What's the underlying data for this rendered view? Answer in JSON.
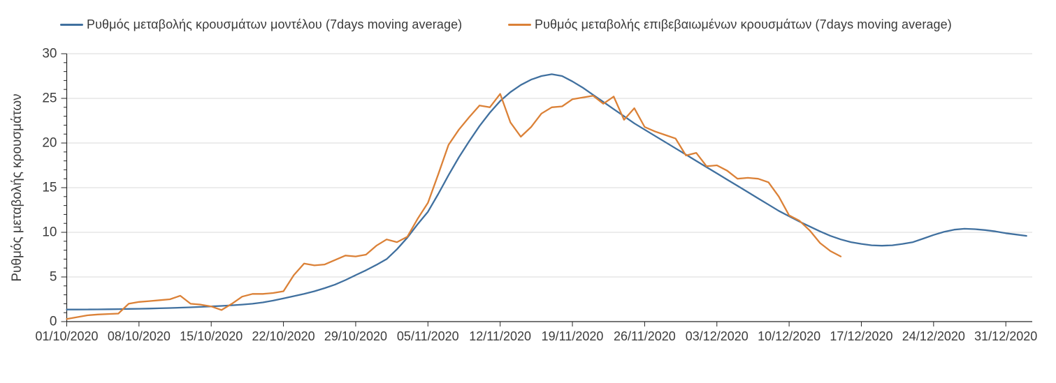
{
  "legend": {
    "items": [
      {
        "label": "Ρυθμός μεταβολής κρουσμάτων μοντέλου (7days moving average)",
        "color": "#40709F"
      },
      {
        "label": "Ρυθμός μεταβολής επιβεβαιωμένων κρουσμάτων (7days moving average)",
        "color": "#DB8137"
      }
    ]
  },
  "axes": {
    "y_title": "Ρυθμός μεταβολής κρουσμάτων"
  },
  "colors": {
    "model_line": "#40709F",
    "confirmed_line": "#DB8137",
    "gridline": "#D9D9D9",
    "axis": "#262626",
    "text": "#3d3d3d"
  },
  "chart_data": {
    "type": "line",
    "title": "",
    "xlabel": "",
    "ylabel": "Ρυθμός μεταβολής κρουσμάτων",
    "ylim": [
      0,
      30
    ],
    "y_major_ticks": [
      0,
      5,
      10,
      15,
      20,
      25,
      30
    ],
    "y_minor_tick_step": 1,
    "grid": "horizontal-major-only",
    "legend_position": "top",
    "x_tick_labels": [
      "01/10/2020",
      "08/10/2020",
      "15/10/2020",
      "22/10/2020",
      "29/10/2020",
      "05/11/2020",
      "12/11/2020",
      "19/11/2020",
      "26/11/2020",
      "03/12/2020",
      "10/12/2020",
      "17/12/2020",
      "24/12/2020",
      "31/12/2020"
    ],
    "x_frequency": "daily",
    "series": [
      {
        "name": "Ρυθμός μεταβολής κρουσμάτων μοντέλου (7days moving average)",
        "color": "#40709F",
        "start_date": "01/10/2020",
        "end_date": "02/01/2021",
        "values": [
          1.35,
          1.35,
          1.36,
          1.37,
          1.38,
          1.4,
          1.42,
          1.44,
          1.46,
          1.49,
          1.52,
          1.56,
          1.6,
          1.65,
          1.7,
          1.76,
          1.83,
          1.91,
          2.0,
          2.15,
          2.35,
          2.6,
          2.85,
          3.1,
          3.4,
          3.75,
          4.15,
          4.65,
          5.2,
          5.75,
          6.35,
          7.0,
          8.1,
          9.4,
          10.9,
          12.3,
          14.3,
          16.4,
          18.4,
          20.2,
          21.9,
          23.4,
          24.7,
          25.7,
          26.5,
          27.1,
          27.5,
          27.7,
          27.5,
          26.9,
          26.2,
          25.4,
          24.6,
          23.8,
          23.0,
          22.2,
          21.5,
          20.8,
          20.1,
          19.4,
          18.7,
          18.0,
          17.3,
          16.6,
          15.9,
          15.2,
          14.5,
          13.8,
          13.1,
          12.4,
          11.8,
          11.2,
          10.65,
          10.1,
          9.6,
          9.2,
          8.9,
          8.7,
          8.55,
          8.5,
          8.55,
          8.7,
          8.9,
          9.3,
          9.7,
          10.05,
          10.3,
          10.4,
          10.35,
          10.25,
          10.1,
          9.9,
          9.75,
          9.6
        ]
      },
      {
        "name": "Ρυθμός μεταβολής επιβεβαιωμένων κρουσμάτων (7days moving average)",
        "color": "#DB8137",
        "start_date": "01/10/2020",
        "end_date": "15/12/2020",
        "values": [
          0.3,
          0.5,
          0.7,
          0.8,
          0.85,
          0.9,
          2.0,
          2.2,
          2.3,
          2.4,
          2.5,
          2.9,
          2.0,
          1.9,
          1.7,
          1.3,
          2.0,
          2.8,
          3.1,
          3.1,
          3.2,
          3.4,
          5.2,
          6.5,
          6.3,
          6.4,
          6.9,
          7.4,
          7.3,
          7.5,
          8.5,
          9.2,
          8.9,
          9.5,
          11.5,
          13.3,
          16.5,
          19.8,
          21.5,
          22.9,
          24.2,
          24.0,
          25.5,
          22.3,
          20.7,
          21.8,
          23.3,
          24.0,
          24.1,
          24.9,
          25.1,
          25.3,
          24.4,
          25.2,
          22.6,
          23.9,
          21.8,
          21.3,
          20.9,
          20.5,
          18.6,
          18.9,
          17.4,
          17.5,
          16.9,
          16.0,
          16.1,
          16.0,
          15.6,
          14.0,
          11.9,
          11.3,
          10.2,
          8.8,
          7.9,
          7.3
        ]
      }
    ]
  }
}
